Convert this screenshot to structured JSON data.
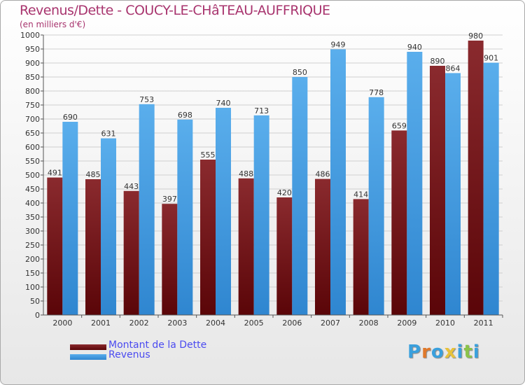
{
  "title": "Revenus/Dette - COUCY-LE-CHâTEAU-AUFFRIQUE",
  "unit_label": "(en milliers d'€)",
  "colors": {
    "dette": "#6b0f14",
    "revenus": "#3f9ae0",
    "title": "#a8346e",
    "legend_text": "#4b4bf0"
  },
  "legend": [
    {
      "label": "Montant de la Dette",
      "color": "#6b0f14"
    },
    {
      "label": "Revenus",
      "color": "#3f9ae0"
    }
  ],
  "logo": {
    "text": "Proxiti",
    "letters": [
      "P",
      "r",
      "o",
      "x",
      "i",
      "t",
      "i"
    ],
    "letter_colors": [
      "#3aa0dd",
      "#e0792b",
      "#3aa0dd",
      "#e8c23a",
      "#3aa0dd",
      "#8bc34a",
      "#3aa0dd"
    ]
  },
  "chart_data": {
    "type": "bar",
    "title": "Revenus/Dette - COUCY-LE-CHâTEAU-AUFFRIQUE",
    "ylabel": "(en milliers d'€)",
    "xlabel": "",
    "ylim": [
      0,
      1000
    ],
    "ytick_step": 50,
    "categories": [
      "2000",
      "2001",
      "2002",
      "2003",
      "2004",
      "2005",
      "2006",
      "2007",
      "2008",
      "2009",
      "2010",
      "2011"
    ],
    "series": [
      {
        "name": "Montant de la Dette",
        "values": [
          491,
          485,
          443,
          397,
          555,
          488,
          420,
          486,
          414,
          659,
          890,
          980
        ]
      },
      {
        "name": "Revenus",
        "values": [
          690,
          631,
          753,
          698,
          740,
          713,
          850,
          949,
          778,
          940,
          864,
          901
        ]
      }
    ]
  }
}
